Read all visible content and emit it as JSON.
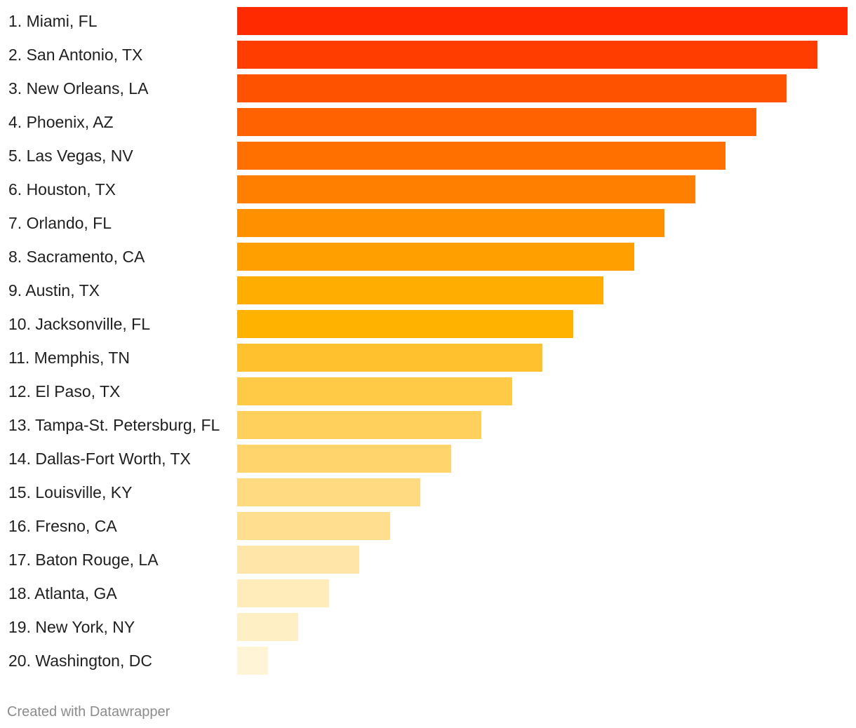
{
  "chart_data": {
    "type": "bar",
    "orientation": "horizontal",
    "categories": [
      "1. Miami, FL",
      "2. San Antonio, TX",
      "3. New Orleans, LA",
      "4. Phoenix, AZ",
      "5. Las Vegas, NV",
      "6. Houston, TX",
      "7. Orlando, FL",
      "8. Sacramento, CA",
      "9. Austin, TX",
      "10. Jacksonville, FL",
      "11. Memphis, TN",
      "12. El Paso, TX",
      "13. Tampa-St. Petersburg, FL",
      "14. Dallas-Fort Worth, TX",
      "15. Louisville, KY",
      "16. Fresno, CA",
      "17. Baton Rouge, LA",
      "18. Atlanta, GA",
      "19. New York, NY",
      "20. Washington, DC"
    ],
    "values": [
      20,
      19,
      18,
      17,
      16,
      15,
      14,
      13,
      12,
      11,
      10,
      9,
      8,
      7,
      6,
      5,
      4,
      3,
      2,
      1
    ],
    "colors": [
      "#ff2a00",
      "#ff3d00",
      "#ff5200",
      "#ff6200",
      "#ff7000",
      "#ff8000",
      "#ff9000",
      "#ffa000",
      "#ffad00",
      "#ffb300",
      "#ffc22e",
      "#ffca45",
      "#ffd05c",
      "#ffd46c",
      "#ffda80",
      "#ffde8f",
      "#ffe6a8",
      "#ffecba",
      "#ffefc5",
      "#fff5d6"
    ],
    "title": "",
    "xlabel": "",
    "ylabel": "",
    "grid": false,
    "xlim": [
      0,
      20
    ]
  },
  "footer": {
    "credit": "Created with Datawrapper"
  }
}
